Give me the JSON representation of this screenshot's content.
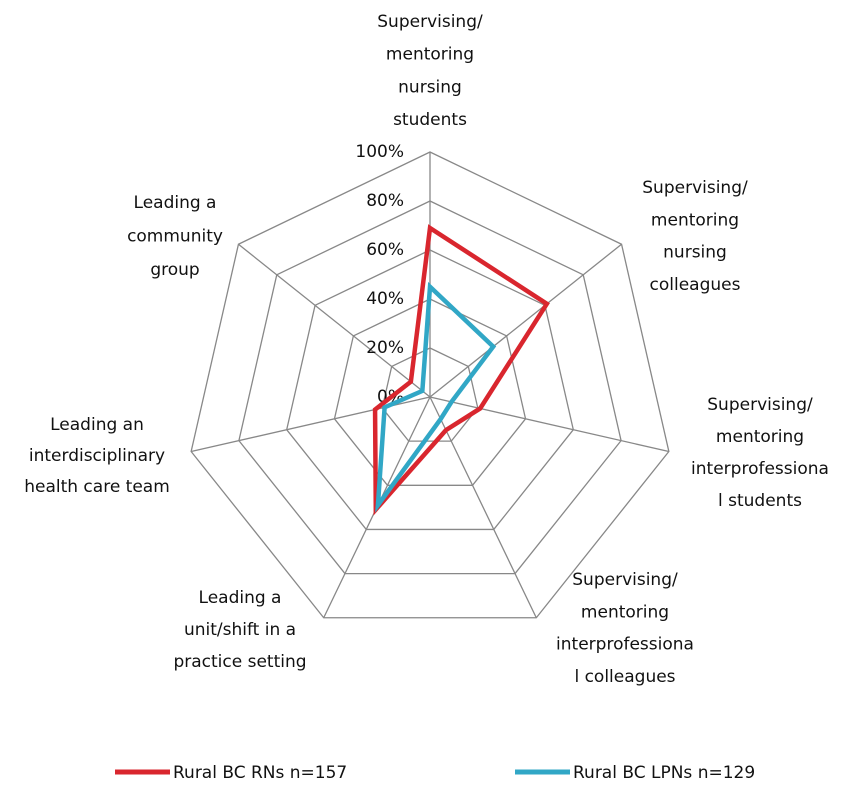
{
  "chart_data": {
    "type": "radar",
    "categories": [
      [
        "Supervising/",
        "mentoring",
        "nursing",
        "students"
      ],
      [
        "Supervising/",
        "mentoring",
        "nursing",
        "colleagues"
      ],
      [
        "Supervising/",
        "mentoring",
        "interprofessiona",
        "l students"
      ],
      [
        "Supervising/",
        "mentoring",
        "interprofessiona",
        "l colleagues"
      ],
      [
        "Leading a",
        "unit/shift in a",
        "practice setting"
      ],
      [
        "Leading an",
        "interdisciplinary",
        "health care team"
      ],
      [
        "Leading a",
        "community",
        "group"
      ]
    ],
    "series": [
      {
        "name": "Rural BC RNs n=157",
        "color": "#d9262e",
        "values": [
          69,
          61,
          21,
          15,
          51,
          23,
          10
        ]
      },
      {
        "name": "Rural BC LPNs n=129",
        "color": "#31a7c6",
        "values": [
          45,
          33,
          9,
          10,
          49,
          19,
          4
        ]
      }
    ],
    "ylim": [
      0,
      100
    ],
    "yticks": [
      {
        "value": 0,
        "label": "0%"
      },
      {
        "value": 20,
        "label": "20%"
      },
      {
        "value": 40,
        "label": "40%"
      },
      {
        "value": 60,
        "label": "60%"
      },
      {
        "value": 80,
        "label": "80%"
      },
      {
        "value": 100,
        "label": "100%"
      }
    ],
    "grid": true,
    "legend": "bottom"
  }
}
